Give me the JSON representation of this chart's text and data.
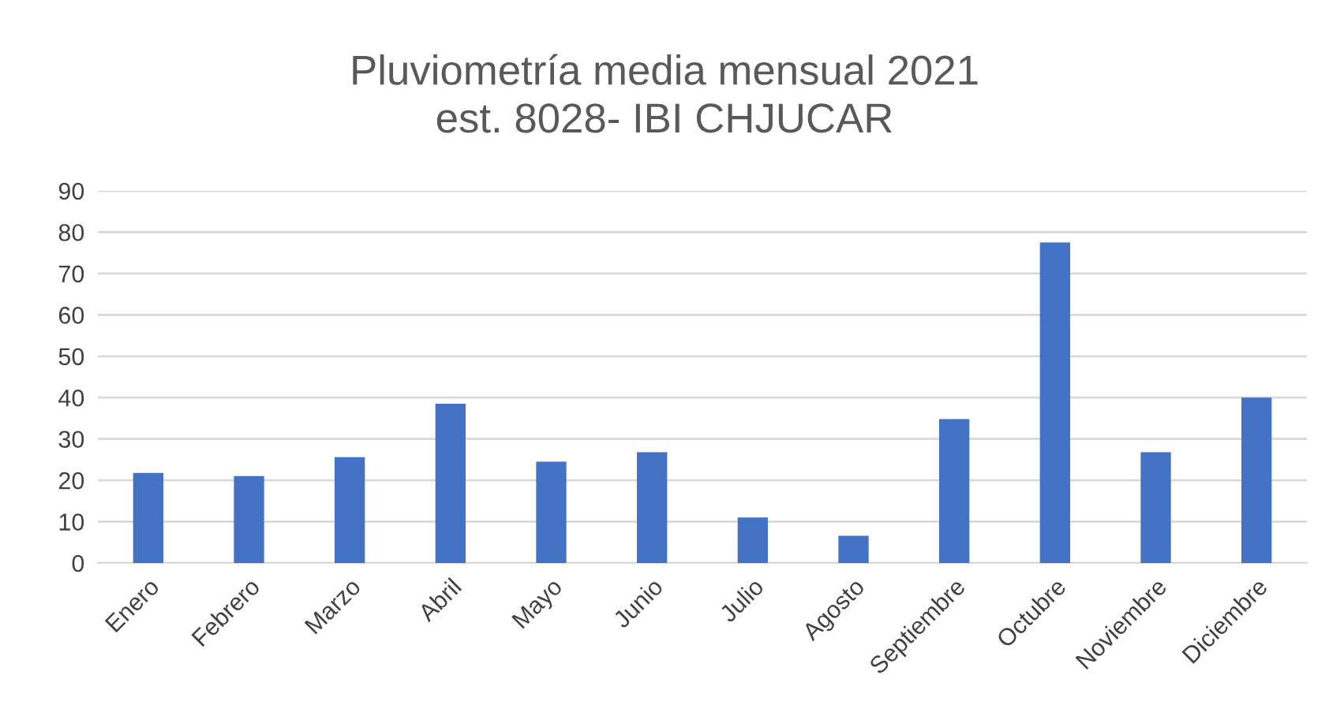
{
  "chart_data": {
    "type": "bar",
    "title": "Pluviometría media mensual 2021\nest. 8028- IBI CHJUCAR",
    "categories": [
      "Enero",
      "Febrero",
      "Marzo",
      "Abril",
      "Mayo",
      "Junio",
      "Julio",
      "Agosto",
      "Septiembre",
      "Octubre",
      "Noviembre",
      "Diciembre"
    ],
    "values": [
      21.8,
      21,
      25.6,
      38.5,
      24.5,
      26.8,
      11,
      6.6,
      34.8,
      77.5,
      26.8,
      40
    ],
    "color": "#4472c4",
    "ylim": [
      0,
      90
    ],
    "yticks": [
      0,
      10,
      20,
      30,
      40,
      50,
      60,
      70,
      80,
      90
    ],
    "grid": "y",
    "legend": false
  }
}
